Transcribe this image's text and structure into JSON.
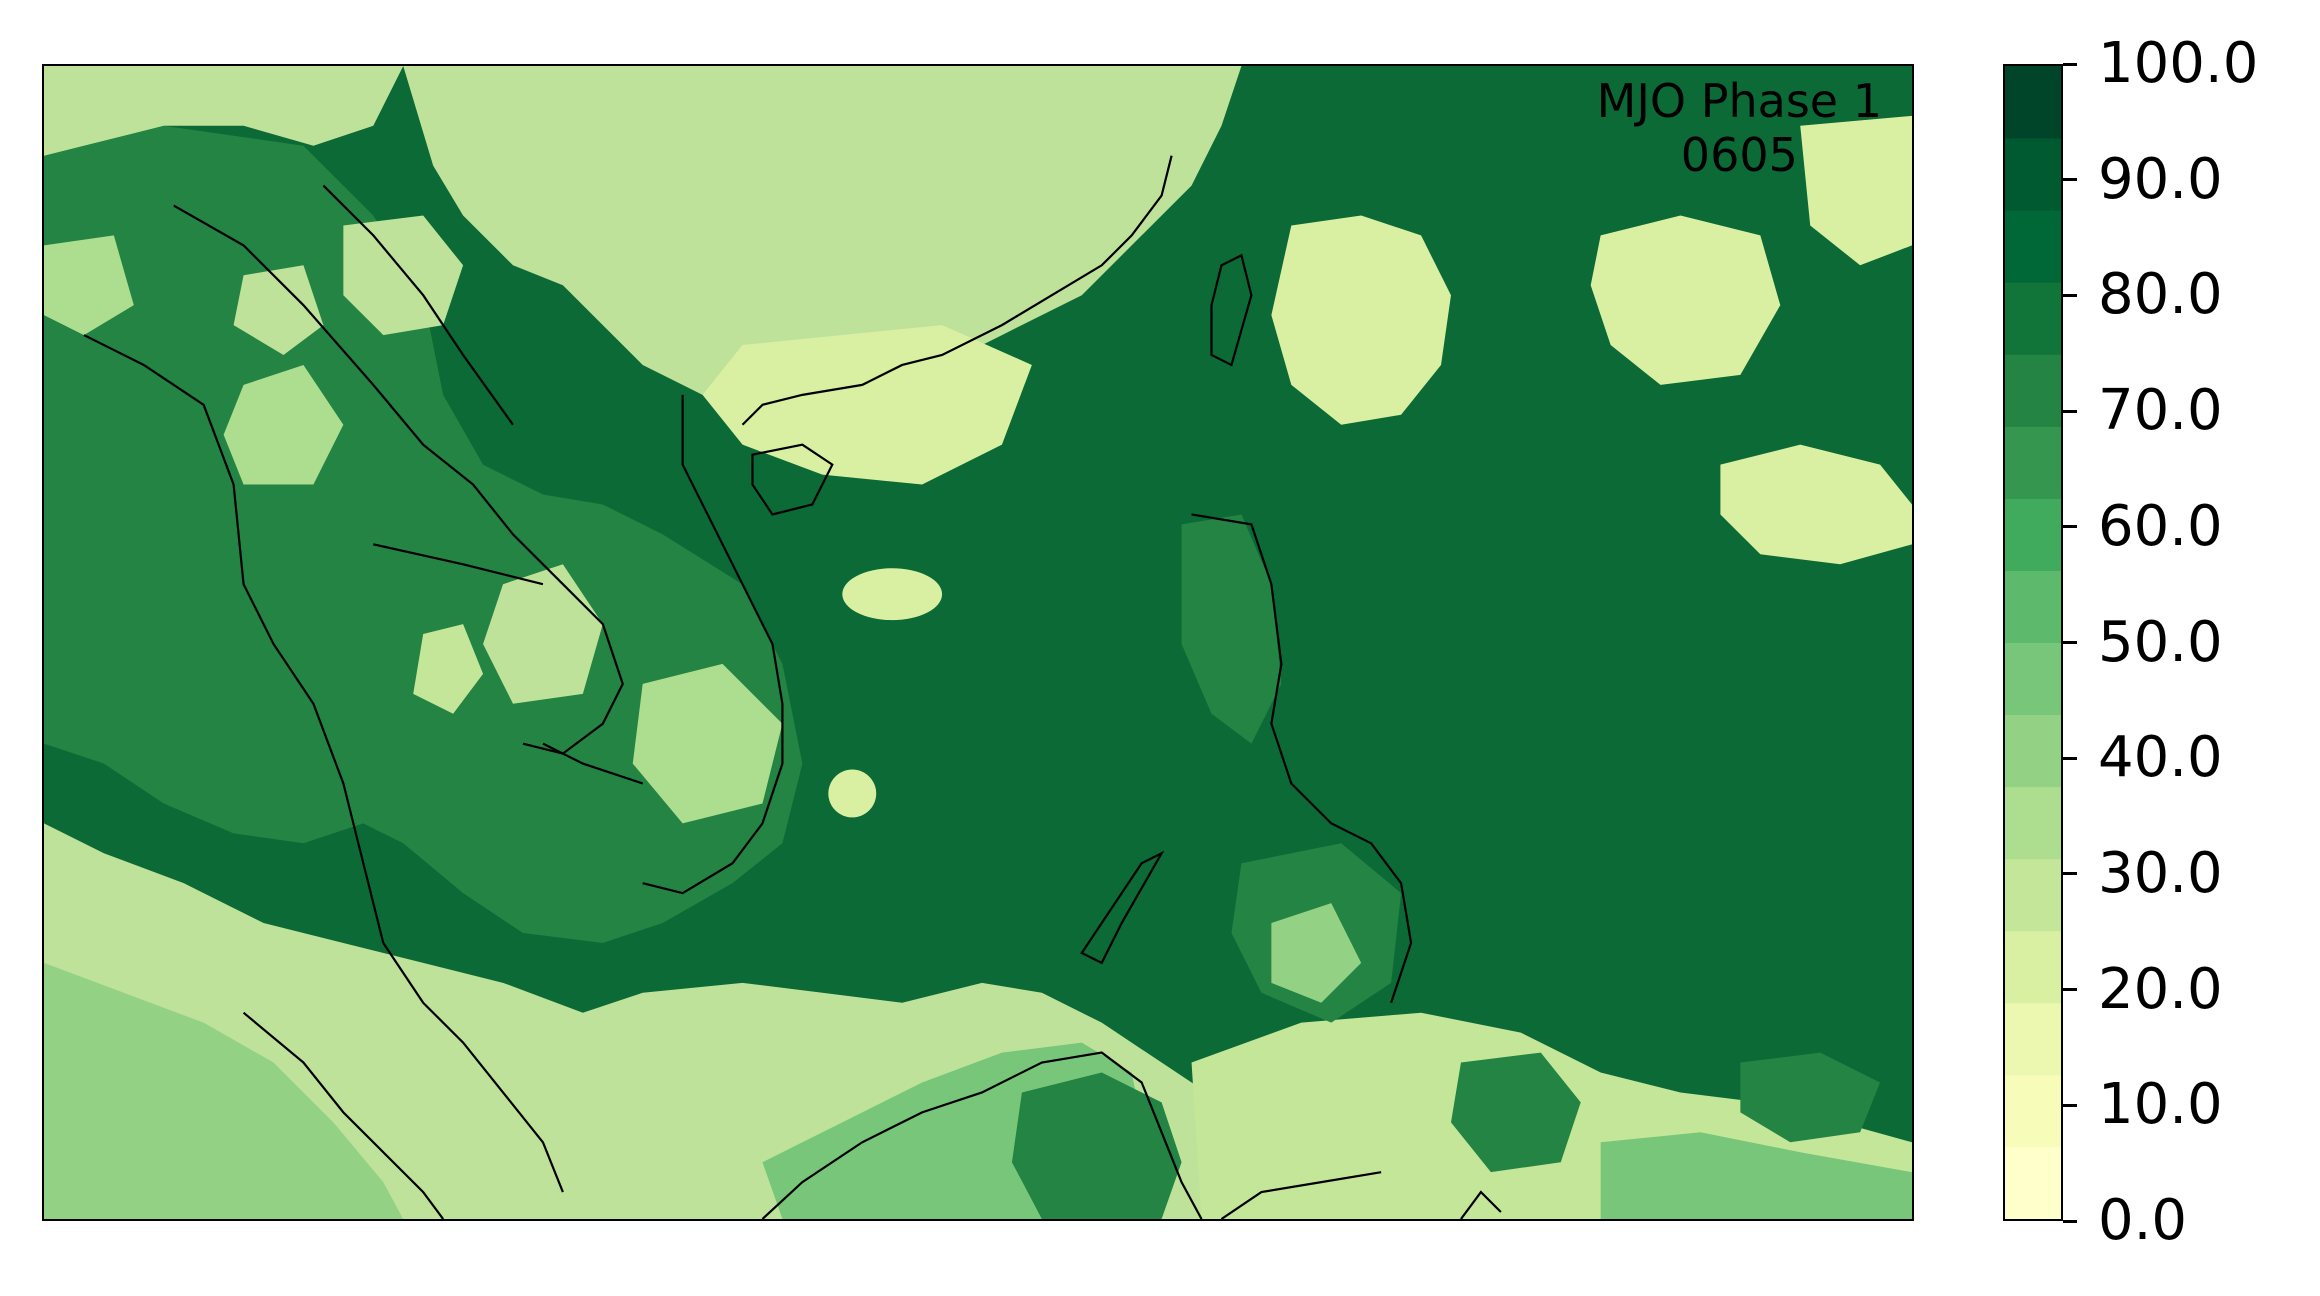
{
  "map": {
    "title_line1": "MJO Phase 1",
    "title_line2": "0605"
  },
  "colorbar": {
    "ticks": [
      "0.0",
      "10.0",
      "20.0",
      "30.0",
      "40.0",
      "50.0",
      "60.0",
      "70.0",
      "80.0",
      "90.0",
      "100.0"
    ],
    "vmin": 0,
    "vmax": 100,
    "colors": [
      "#ffffcc",
      "#f7fcb9",
      "#ecf7af",
      "#d9f0a3",
      "#c4e699",
      "#addd8e",
      "#93d284",
      "#78c679",
      "#5db96b",
      "#41ab5d",
      "#35964f",
      "#238443",
      "#117439",
      "#006837",
      "#005a31",
      "#004529"
    ]
  },
  "chart_data": {
    "type": "heatmap",
    "title": "MJO Phase 1 0605",
    "colorbar_range": [
      0,
      100
    ]
  }
}
